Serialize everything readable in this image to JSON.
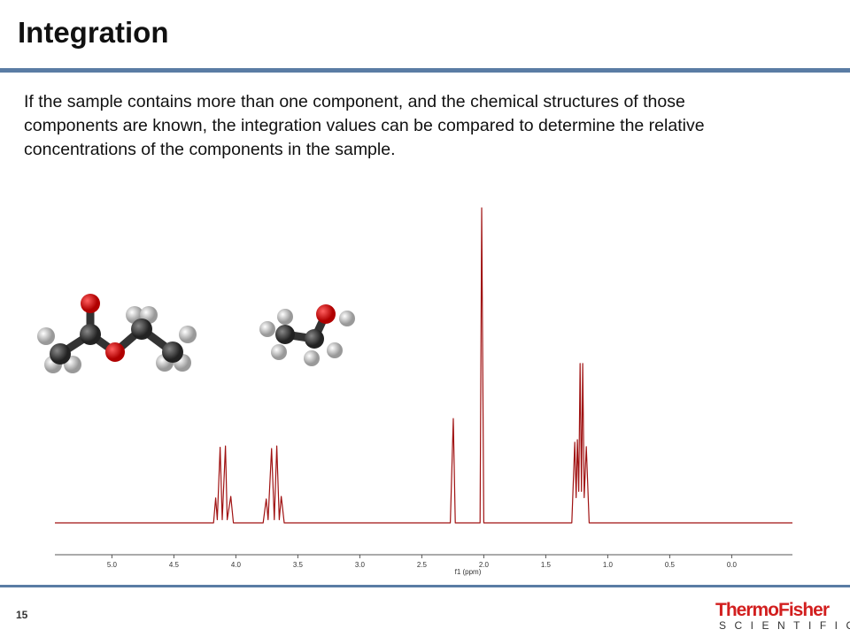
{
  "slide": {
    "title": "Integration",
    "body": "If the sample contains more than one component, and the chemical structures of those components are known, the integration values can be compared to determine the relative concentrations of the components in the sample.",
    "page_number": "15",
    "logo": {
      "brand": "ThermoFisher",
      "sub": "SCIENTIFIC"
    }
  },
  "chart_data": {
    "type": "line",
    "x_label": "f1 (ppm)",
    "color": "#a01212",
    "xlim": [
      5.46,
      -0.49
    ],
    "ylim": [
      0,
      100
    ],
    "xticks": [
      {
        "value": 5,
        "label": "5.0"
      },
      4.5,
      {
        "value": 4,
        "label": "4.0"
      },
      3.5,
      {
        "value": 3,
        "label": "3.0"
      },
      2.5,
      {
        "value": 2,
        "label": "2.0"
      },
      1.5,
      {
        "value": 1,
        "label": "1.0"
      },
      0.5,
      {
        "value": 0,
        "label": "0.0"
      }
    ],
    "x": [
      5.46,
      4.18,
      4.163,
      4.15,
      4.127,
      4.11,
      4.084,
      4.07,
      4.041,
      4.02,
      3.78,
      3.755,
      3.74,
      3.712,
      3.69,
      3.67,
      3.65,
      3.634,
      3.61,
      2.27,
      2.246,
      2.23,
      2.03,
      2.017,
      2.0,
      1.29,
      1.266,
      1.255,
      1.245,
      1.234,
      1.223,
      1.212,
      1.202,
      1.19,
      1.173,
      1.15,
      -0.49
    ],
    "values": [
      0,
      0,
      7.9,
      1,
      24,
      1,
      24.4,
      1,
      8.4,
      0,
      0,
      7.6,
      1,
      23.6,
      1,
      24.4,
      1,
      8.4,
      0,
      0,
      33.1,
      0,
      0,
      100,
      0,
      0,
      25.6,
      8,
      26.4,
      10,
      50.6,
      10,
      50.6,
      8,
      24.2,
      0,
      0
    ]
  }
}
